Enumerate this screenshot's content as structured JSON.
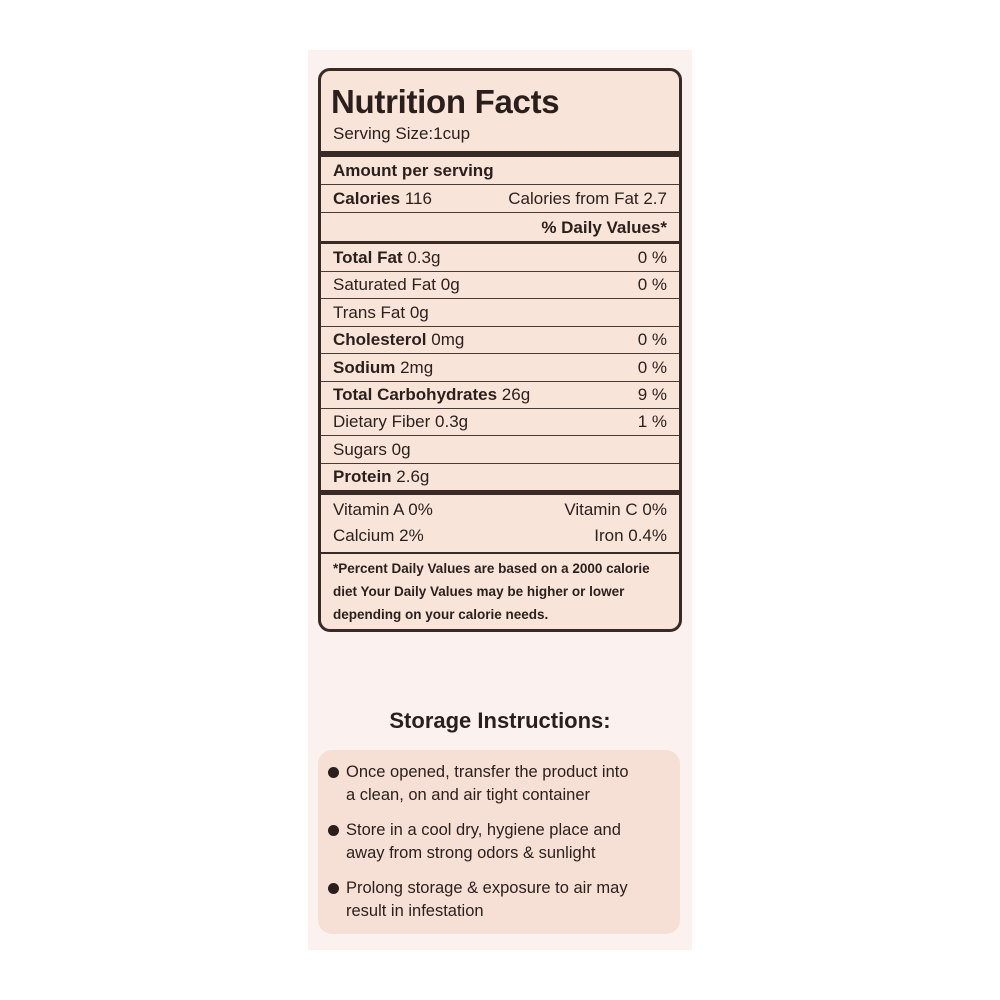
{
  "nutrition": {
    "title": "Nutrition Facts",
    "serving_size": "Serving Size:1cup",
    "amount_per_serving": "Amount per serving",
    "calories": {
      "label": "Calories",
      "value": "116",
      "from_fat": "Calories from Fat 2.7"
    },
    "daily_values_header": "% Daily Values*",
    "nutrients": [
      {
        "name": "Total Fat",
        "amount": "0.3g",
        "dv": "0 %",
        "bold": true
      },
      {
        "name": "Saturated Fat",
        "amount": "0g",
        "dv": "0 %",
        "bold": false
      },
      {
        "name": "Trans Fat",
        "amount": "0g",
        "bold": false
      },
      {
        "name": "Cholesterol",
        "amount": "0mg",
        "dv": "0 %",
        "bold": true
      },
      {
        "name": "Sodium",
        "amount": "2mg",
        "dv": "0 %",
        "bold": true
      },
      {
        "name": "Total Carbohydrates",
        "amount": "26g",
        "dv": "9 %",
        "bold": true
      },
      {
        "name": "Dietary Fiber",
        "amount": "0.3g",
        "dv": "1 %",
        "bold": false
      },
      {
        "name": "Sugars",
        "amount": "0g",
        "bold": false
      },
      {
        "name": "Protein",
        "amount": "2.6g",
        "bold": true
      }
    ],
    "vitamins": [
      [
        "Vitamin A 0%",
        "Vitamin C 0%"
      ],
      [
        "Calcium 2%",
        "Iron 0.4%"
      ]
    ],
    "footnote": [
      "*Percent Daily Values are based on a 2000 calorie",
      "diet Your Daily Values may be higher or lower",
      "depending on your calorie needs."
    ]
  },
  "storage": {
    "title": "Storage Instructions:",
    "items": [
      [
        "Once opened, transfer the product into",
        "a clean, on and air tight container"
      ],
      [
        "Store in a cool dry, hygiene place and",
        "away from strong odors & sunlight"
      ],
      [
        "Prolong storage & exposure to air may",
        "result in infestation"
      ]
    ]
  }
}
